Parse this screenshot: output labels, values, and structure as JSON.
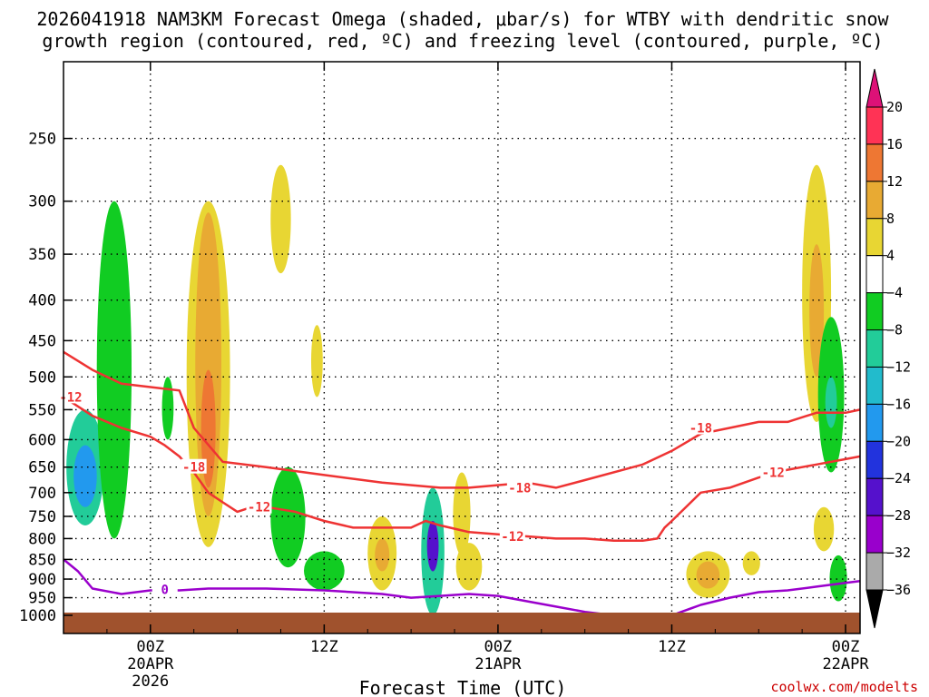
{
  "chart_data": {
    "type": "time-height cross section",
    "title_line1": "2026041918 NAM3KM Forecast Omega (shaded, μbar/s) for WTBY with dendritic snow",
    "title_line2": "growth region (contoured, red, ºC) and freezing level (contoured, purple, ºC)",
    "xlabel": "Forecast Time (UTC)",
    "credit": "coolwx.com/modelts",
    "x_range_hours": [
      -6,
      49
    ],
    "y_range_hpa": [
      1000,
      200
    ],
    "x_ticks": [
      {
        "h": 0,
        "label": "00Z",
        "sub1": "20APR",
        "sub2": "2026"
      },
      {
        "h": 12,
        "label": "12Z",
        "sub1": "",
        "sub2": ""
      },
      {
        "h": 24,
        "label": "00Z",
        "sub1": "21APR",
        "sub2": ""
      },
      {
        "h": 36,
        "label": "12Z",
        "sub1": "",
        "sub2": ""
      },
      {
        "h": 48,
        "label": "00Z",
        "sub1": "22APR",
        "sub2": ""
      }
    ],
    "y_ticks": [
      250,
      300,
      350,
      400,
      450,
      500,
      550,
      600,
      650,
      700,
      750,
      800,
      850,
      900,
      950,
      1000
    ],
    "colorbar": {
      "labels": [
        "20",
        "16",
        "12",
        "8",
        "4",
        "−4",
        "−8",
        "−12",
        "−16",
        "−20",
        "−24",
        "−28",
        "−32",
        "−36"
      ],
      "colors": [
        "#ff3355",
        "#ee7733",
        "#e8aa33",
        "#e8d633",
        "#ffffff",
        "#11cc22",
        "#22cc99",
        "#22bbcc",
        "#2299ee",
        "#2233dd",
        "#5511cc",
        "#9900cc",
        "#aaaaaa"
      ],
      "top_arrow": "#dd1177",
      "bottom_arrow": "#000000"
    },
    "contours": [
      {
        "name": "-12C",
        "color": "#ee3333",
        "labels": [
          {
            "text": "-12",
            "h": -5.5,
            "p": 530
          },
          {
            "text": "-12",
            "h": 7.5,
            "p": 730
          },
          {
            "text": "-12",
            "h": 25,
            "p": 795
          },
          {
            "text": "-12",
            "h": 43,
            "p": 660
          }
        ],
        "points": [
          [
            -6,
            530
          ],
          [
            -4,
            560
          ],
          [
            -2,
            580
          ],
          [
            0,
            595
          ],
          [
            1,
            610
          ],
          [
            2,
            630
          ],
          [
            3,
            660
          ],
          [
            4,
            700
          ],
          [
            5,
            720
          ],
          [
            6,
            740
          ],
          [
            7,
            730
          ],
          [
            8,
            730
          ],
          [
            10,
            740
          ],
          [
            12,
            760
          ],
          [
            14,
            775
          ],
          [
            16,
            775
          ],
          [
            18,
            775
          ],
          [
            19,
            760
          ],
          [
            20,
            770
          ],
          [
            22,
            785
          ],
          [
            24,
            790
          ],
          [
            26,
            795
          ],
          [
            28,
            800
          ],
          [
            30,
            800
          ],
          [
            32,
            805
          ],
          [
            34,
            805
          ],
          [
            35,
            800
          ],
          [
            35.5,
            775
          ],
          [
            36,
            760
          ],
          [
            38,
            700
          ],
          [
            40,
            690
          ],
          [
            42,
            670
          ],
          [
            44,
            655
          ],
          [
            46,
            645
          ],
          [
            48,
            635
          ],
          [
            49,
            630
          ]
        ]
      },
      {
        "name": "-18C",
        "color": "#ee3333",
        "labels": [
          {
            "text": "-18",
            "h": 3,
            "p": 650
          },
          {
            "text": "-18",
            "h": 25.5,
            "p": 690
          },
          {
            "text": "-18",
            "h": 38,
            "p": 580
          }
        ],
        "points": [
          [
            -6,
            465
          ],
          [
            -4,
            490
          ],
          [
            -2,
            510
          ],
          [
            0,
            515
          ],
          [
            2,
            520
          ],
          [
            3,
            580
          ],
          [
            5,
            640
          ],
          [
            8,
            650
          ],
          [
            12,
            665
          ],
          [
            16,
            680
          ],
          [
            20,
            690
          ],
          [
            22,
            690
          ],
          [
            26,
            680
          ],
          [
            28,
            690
          ],
          [
            30,
            675
          ],
          [
            34,
            645
          ],
          [
            36,
            620
          ],
          [
            38,
            590
          ],
          [
            40,
            580
          ],
          [
            42,
            570
          ],
          [
            44,
            570
          ],
          [
            46,
            555
          ],
          [
            48,
            555
          ],
          [
            49,
            550
          ]
        ]
      },
      {
        "name": "0C",
        "color": "#9a00cc",
        "labels": [
          {
            "text": "0",
            "h": 1,
            "p": 927
          }
        ],
        "points": [
          [
            -6,
            850
          ],
          [
            -5,
            880
          ],
          [
            -4,
            925
          ],
          [
            -2,
            940
          ],
          [
            0,
            930
          ],
          [
            2,
            930
          ],
          [
            4,
            925
          ],
          [
            8,
            925
          ],
          [
            12,
            930
          ],
          [
            16,
            940
          ],
          [
            18,
            950
          ],
          [
            20,
            945
          ],
          [
            22,
            940
          ],
          [
            24,
            945
          ],
          [
            26,
            960
          ],
          [
            28,
            975
          ],
          [
            30,
            990
          ],
          [
            32,
            1010
          ],
          [
            34,
            1020
          ],
          [
            36,
            1010
          ],
          [
            38,
            970
          ],
          [
            40,
            950
          ],
          [
            42,
            935
          ],
          [
            44,
            930
          ],
          [
            46,
            920
          ],
          [
            48,
            910
          ],
          [
            49,
            905
          ]
        ]
      }
    ],
    "omega_regions": [
      {
        "h": -4.5,
        "p": 660,
        "rh": 1.3,
        "rp": 110,
        "v": -8
      },
      {
        "h": -4.5,
        "p": 670,
        "rh": 0.8,
        "rp": 60,
        "v": -16
      },
      {
        "h": -2.5,
        "p": 550,
        "rh": 1.2,
        "rp": 250,
        "v": -4
      },
      {
        "h": 1.2,
        "p": 550,
        "rh": 0.4,
        "rp": 50,
        "v": -4
      },
      {
        "h": 4.0,
        "p": 560,
        "rh": 1.5,
        "rp": 260,
        "v": 4
      },
      {
        "h": 4.0,
        "p": 530,
        "rh": 0.9,
        "rp": 220,
        "v": 8
      },
      {
        "h": 4.0,
        "p": 590,
        "rh": 0.5,
        "rp": 100,
        "v": 12
      },
      {
        "h": 9.0,
        "p": 320,
        "rh": 0.7,
        "rp": 50,
        "v": 4
      },
      {
        "h": 9.5,
        "p": 760,
        "rh": 1.2,
        "rp": 110,
        "v": -4
      },
      {
        "h": 11.5,
        "p": 480,
        "rh": 0.4,
        "rp": 50,
        "v": 4
      },
      {
        "h": 12.0,
        "p": 880,
        "rh": 1.4,
        "rp": 50,
        "v": -4
      },
      {
        "h": 16.0,
        "p": 840,
        "rh": 1.0,
        "rp": 90,
        "v": 4
      },
      {
        "h": 16.0,
        "p": 840,
        "rh": 0.5,
        "rp": 40,
        "v": 8
      },
      {
        "h": 19.5,
        "p": 850,
        "rh": 0.8,
        "rp": 160,
        "v": -8
      },
      {
        "h": 19.5,
        "p": 820,
        "rh": 0.4,
        "rp": 60,
        "v": -24
      },
      {
        "h": 21.5,
        "p": 750,
        "rh": 0.6,
        "rp": 90,
        "v": 4
      },
      {
        "h": 22.0,
        "p": 870,
        "rh": 0.9,
        "rp": 60,
        "v": 4
      },
      {
        "h": 38.5,
        "p": 890,
        "rh": 1.5,
        "rp": 60,
        "v": 4
      },
      {
        "h": 38.5,
        "p": 890,
        "rh": 0.8,
        "rp": 35,
        "v": 8
      },
      {
        "h": 41.5,
        "p": 860,
        "rh": 0.6,
        "rp": 30,
        "v": 4
      },
      {
        "h": 46.0,
        "p": 420,
        "rh": 1.0,
        "rp": 150,
        "v": 4
      },
      {
        "h": 46.0,
        "p": 420,
        "rh": 0.5,
        "rp": 80,
        "v": 8
      },
      {
        "h": 46.5,
        "p": 780,
        "rh": 0.7,
        "rp": 50,
        "v": 4
      },
      {
        "h": 47.0,
        "p": 540,
        "rh": 0.9,
        "rp": 120,
        "v": -4
      },
      {
        "h": 47.0,
        "p": 540,
        "rh": 0.4,
        "rp": 40,
        "v": -8
      },
      {
        "h": 47.5,
        "p": 900,
        "rh": 0.6,
        "rp": 60,
        "v": -4
      }
    ]
  }
}
